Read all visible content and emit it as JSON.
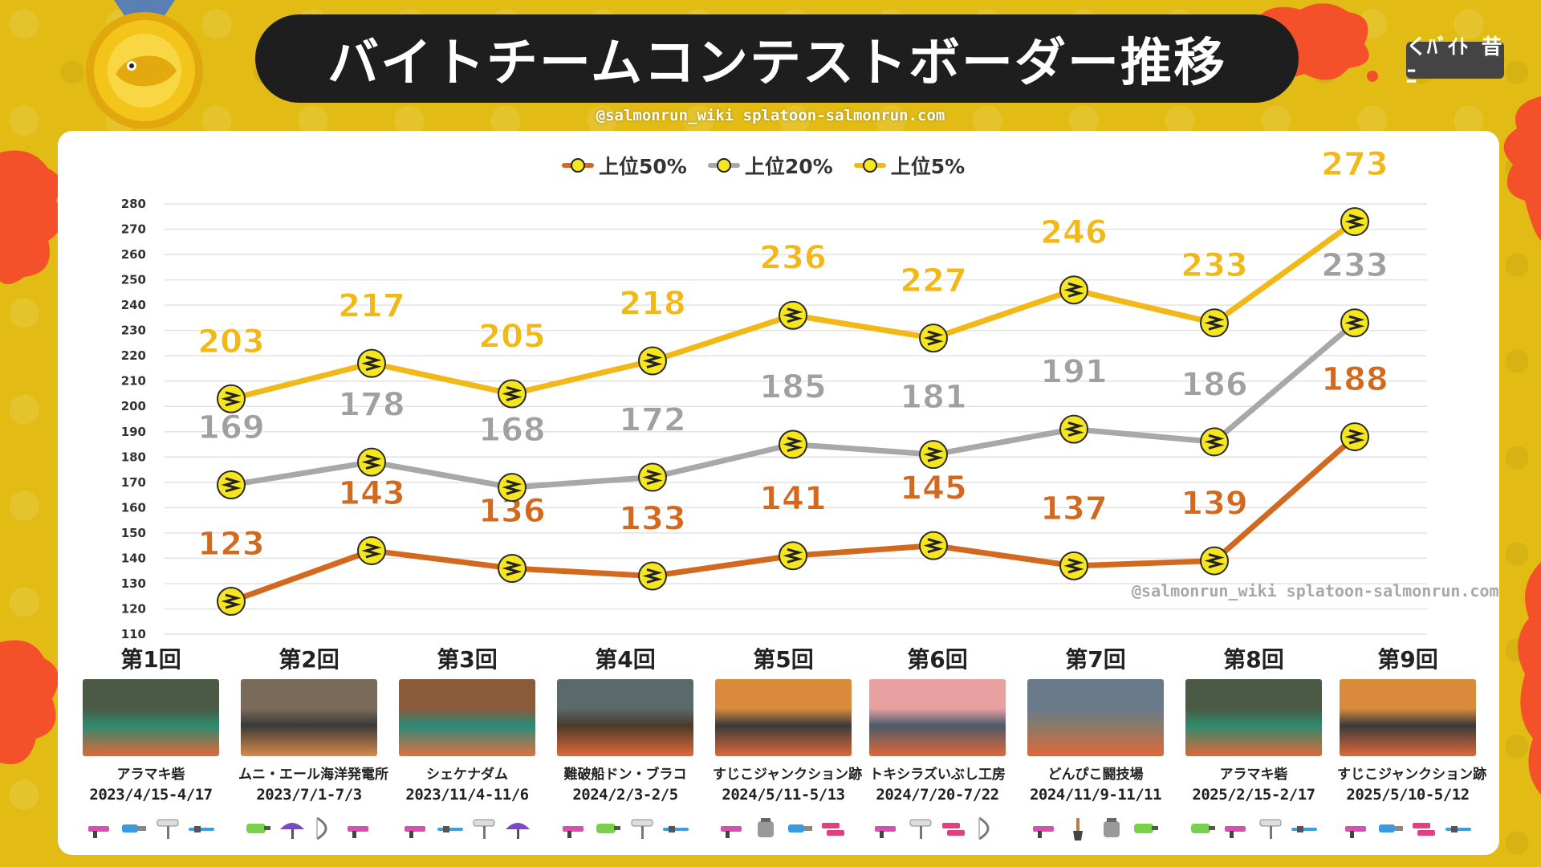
{
  "page": {
    "title": "バイトチームコンテストボーダー推移",
    "credit": "@salmonrun_wiki splatoon-salmonrun.com",
    "watermark": "@salmonrun_wiki splatoon-salmonrun.com",
    "logo_text": "くﾊﾞｲﾄ 昔ﾆ"
  },
  "colors": {
    "background": "#e2bc14",
    "splat": "#f4502a",
    "top50": "#d2691e",
    "top20": "#a8a8a8",
    "top5": "#f2b817",
    "marker_fill": "#f5e61e"
  },
  "chart_data": {
    "type": "line",
    "title": "バイトチームコンテストボーダー推移",
    "categories": [
      "第1回",
      "第2回",
      "第3回",
      "第4回",
      "第5回",
      "第6回",
      "第7回",
      "第8回",
      "第9回"
    ],
    "ylim": [
      110,
      280
    ],
    "yticks": [
      110,
      120,
      130,
      140,
      150,
      160,
      170,
      180,
      190,
      200,
      210,
      220,
      230,
      240,
      250,
      260,
      270,
      280
    ],
    "grid": true,
    "legend_position": "top-center",
    "series": [
      {
        "name": "上位50%",
        "color_key": "top50",
        "values": [
          123,
          143,
          136,
          133,
          141,
          145,
          137,
          139,
          188
        ]
      },
      {
        "name": "上位20%",
        "color_key": "top20",
        "values": [
          169,
          178,
          168,
          172,
          185,
          181,
          191,
          186,
          233
        ]
      },
      {
        "name": "上位5%",
        "color_key": "top5",
        "values": [
          203,
          217,
          205,
          218,
          236,
          227,
          246,
          233,
          273
        ]
      }
    ]
  },
  "contests": [
    {
      "round": "第1回",
      "stage": "アラマキ砦",
      "dates": "2023/4/15-4/17",
      "thumb": [
        "#4a5a44",
        "#2d8a6e",
        "#e06838"
      ],
      "weapons": [
        "shooter-icon",
        "blaster-icon",
        "roller-icon",
        "charger-icon"
      ]
    },
    {
      "round": "第2回",
      "stage": "ムニ・エール海洋発電所",
      "dates": "2023/7/1-7/3",
      "thumb": [
        "#7a6a5a",
        "#3a3a3a",
        "#d98a4a"
      ],
      "weapons": [
        "splatling-icon",
        "brella-icon",
        "bow-icon",
        "shooter-icon"
      ]
    },
    {
      "round": "第3回",
      "stage": "シェケナダム",
      "dates": "2023/11/4-11/6",
      "thumb": [
        "#8a5a3a",
        "#2a8a7a",
        "#e07040"
      ],
      "weapons": [
        "shooter-icon",
        "charger-icon",
        "roller-icon",
        "brella-icon"
      ]
    },
    {
      "round": "第4回",
      "stage": "難破船ドン・ブラコ",
      "dates": "2024/2/3-2/5",
      "thumb": [
        "#5a6a6a",
        "#4a3a2a",
        "#e06838"
      ],
      "weapons": [
        "shooter-icon",
        "splatling-icon",
        "roller-icon",
        "charger-icon"
      ]
    },
    {
      "round": "第5回",
      "stage": "すじこジャンクション跡",
      "dates": "2024/5/11-5/13",
      "thumb": [
        "#d98a3a",
        "#3a3a3a",
        "#e06838"
      ],
      "weapons": [
        "shooter-icon",
        "slosher-icon",
        "blaster-icon",
        "dualie-icon"
      ]
    },
    {
      "round": "第6回",
      "stage": "トキシラズいぶし工房",
      "dates": "2024/7/20-7/22",
      "thumb": [
        "#e8a0a0",
        "#4a5a6a",
        "#e06838"
      ],
      "weapons": [
        "shooter-icon",
        "roller-icon",
        "dualie-icon",
        "bow-icon"
      ]
    },
    {
      "round": "第7回",
      "stage": "どんぴこ闘技場",
      "dates": "2024/11/9-11/11",
      "thumb": [
        "#6a7a8a",
        "#8a7a6a",
        "#e06838"
      ],
      "weapons": [
        "shooter-icon",
        "brush-icon",
        "slosher-icon",
        "splatling-icon"
      ]
    },
    {
      "round": "第8回",
      "stage": "アラマキ砦",
      "dates": "2025/2/15-2/17",
      "thumb": [
        "#4a5a44",
        "#2d8a6e",
        "#e06838"
      ],
      "weapons": [
        "splatling-icon",
        "shooter-icon",
        "roller-icon",
        "charger-icon"
      ]
    },
    {
      "round": "第9回",
      "stage": "すじこジャンクション跡",
      "dates": "2025/5/10-5/12",
      "thumb": [
        "#d98a3a",
        "#3a3a3a",
        "#e06838"
      ],
      "weapons": [
        "shooter-icon",
        "blaster-icon",
        "dualie-icon",
        "charger-icon"
      ]
    }
  ]
}
